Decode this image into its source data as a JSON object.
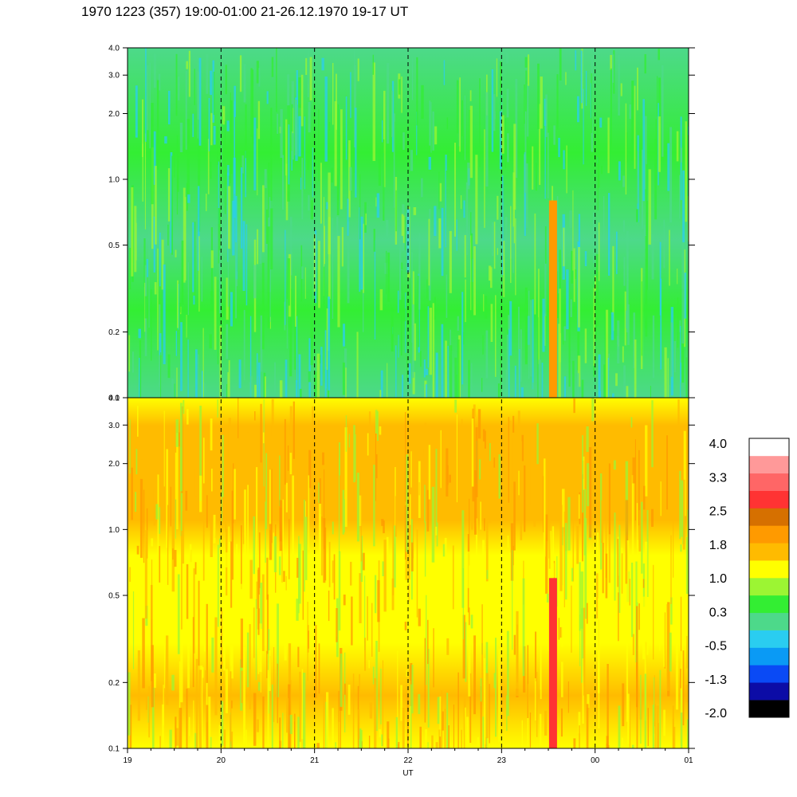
{
  "title": "1970 1223 (357) 19:00-01:00 21-26.12.1970  19-17 UT",
  "chart_data": [
    {
      "type": "heatmap",
      "panel": "upper",
      "y_scale": "log",
      "ylim": [
        0.1,
        4.0
      ],
      "yticks": [
        "0.1",
        "0.2",
        "0.5",
        "1.0",
        "2.0",
        "3.0",
        "4.0"
      ],
      "ytick_values": [
        0.1,
        0.2,
        0.5,
        1.0,
        2.0,
        3.0,
        4.0
      ],
      "dominant_colors": [
        "#33ee33",
        "#4dd98a",
        "#2acdf0",
        "#9cf533"
      ],
      "features": [
        {
          "time": 23.55,
          "y_range": [
            0.1,
            0.8
          ],
          "color": "#ff9a00"
        }
      ]
    },
    {
      "type": "heatmap",
      "panel": "lower",
      "y_scale": "log",
      "ylim": [
        0.1,
        4.0
      ],
      "yticks": [
        "0.1",
        "0.2",
        "0.5",
        "1.0",
        "2.0",
        "3.0",
        "4.0"
      ],
      "ytick_values": [
        0.1,
        0.2,
        0.5,
        1.0,
        2.0,
        3.0,
        4.0
      ],
      "dominant_colors": [
        "#ffff00",
        "#ffbb00",
        "#ff9a00",
        "#9cf533"
      ],
      "features": [
        {
          "time": 23.55,
          "y_range": [
            0.1,
            0.6
          ],
          "color": "#ff3333"
        }
      ]
    }
  ],
  "x_axis": {
    "label": "UT",
    "ticks": [
      "19",
      "20",
      "21",
      "22",
      "23",
      "00",
      "01"
    ],
    "range_hours": [
      19,
      25
    ],
    "dashed_lines_at": [
      20,
      21,
      22,
      23,
      24
    ]
  },
  "colorbar": {
    "colors": [
      "#000000",
      "#0c0ca6",
      "#0a4af5",
      "#0a9af5",
      "#2acdf0",
      "#4dd98a",
      "#33ee33",
      "#9cf533",
      "#ffff00",
      "#ffbb00",
      "#ff9a00",
      "#d67000",
      "#ff3333",
      "#ff6666",
      "#ff9999",
      "#ffffff"
    ],
    "labels": [
      "-2.0",
      "-1.3",
      "-0.5",
      "0.3",
      "1.0",
      "1.8",
      "2.5",
      "3.3",
      "4.0"
    ]
  }
}
